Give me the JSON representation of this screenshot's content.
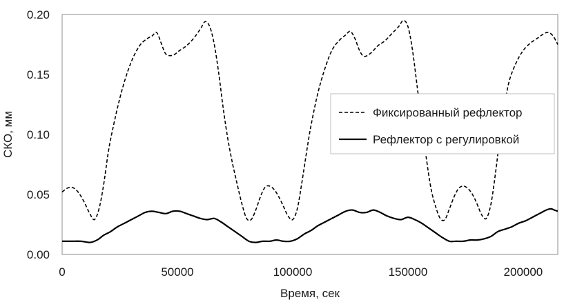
{
  "chart_data": {
    "type": "line",
    "title": "",
    "xlabel": "Время, сек",
    "ylabel": "СКО, мм",
    "xlim": [
      0,
      215000
    ],
    "ylim": [
      0,
      0.2
    ],
    "x_ticks": [
      0,
      50000,
      100000,
      150000,
      200000
    ],
    "x_tick_labels": [
      "0",
      "50000",
      "100000",
      "150000",
      "200000"
    ],
    "y_ticks": [
      0,
      0.05,
      0.1,
      0.15,
      0.2
    ],
    "y_tick_labels": [
      "0.00",
      "0.05",
      "0.10",
      "0.15",
      "0.20"
    ],
    "grid": false,
    "legend_position": "right",
    "series": [
      {
        "name": "Фиксированный рефлектор",
        "style": "dashed",
        "color": "#000000",
        "x": [
          0,
          2000,
          4000,
          6000,
          8000,
          10000,
          12000,
          14000,
          16000,
          18000,
          20000,
          22000,
          25000,
          28000,
          31000,
          34000,
          37000,
          39000,
          41000,
          43000,
          45000,
          48000,
          51000,
          54000,
          57000,
          60000,
          62000,
          64000,
          66000,
          68000,
          70000,
          72000,
          74000,
          76000,
          78000,
          80000,
          82000,
          84000,
          86000,
          88000,
          90000,
          92000,
          94000,
          96000,
          98000,
          100000,
          102000,
          104000,
          106000,
          108000,
          111000,
          114000,
          117000,
          120000,
          123000,
          125000,
          127000,
          129000,
          131000,
          134000,
          137000,
          140000,
          143000,
          146000,
          148000,
          150000,
          152000,
          154000,
          156000,
          158000,
          160000,
          162000,
          164000,
          166000,
          168000,
          170000,
          172000,
          174000,
          176000,
          178000,
          180000,
          182000,
          184000,
          186000,
          188000,
          190000,
          192000,
          194000,
          197000,
          200000,
          203000,
          206000,
          209000,
          211000,
          213000,
          215000
        ],
        "values": [
          0.052,
          0.055,
          0.056,
          0.054,
          0.049,
          0.042,
          0.034,
          0.029,
          0.038,
          0.058,
          0.085,
          0.105,
          0.13,
          0.15,
          0.165,
          0.175,
          0.18,
          0.182,
          0.185,
          0.176,
          0.167,
          0.166,
          0.17,
          0.174,
          0.18,
          0.188,
          0.194,
          0.19,
          0.175,
          0.15,
          0.12,
          0.095,
          0.075,
          0.058,
          0.042,
          0.03,
          0.029,
          0.037,
          0.048,
          0.056,
          0.057,
          0.054,
          0.048,
          0.04,
          0.032,
          0.029,
          0.038,
          0.06,
          0.085,
          0.108,
          0.135,
          0.155,
          0.17,
          0.178,
          0.183,
          0.186,
          0.18,
          0.17,
          0.165,
          0.168,
          0.174,
          0.178,
          0.184,
          0.19,
          0.195,
          0.19,
          0.17,
          0.14,
          0.11,
          0.08,
          0.055,
          0.04,
          0.03,
          0.029,
          0.038,
          0.048,
          0.055,
          0.057,
          0.055,
          0.05,
          0.042,
          0.033,
          0.03,
          0.042,
          0.068,
          0.1,
          0.125,
          0.145,
          0.16,
          0.17,
          0.176,
          0.18,
          0.184,
          0.185,
          0.182,
          0.175
        ]
      },
      {
        "name": "Рефлектор с регулировкой",
        "style": "solid",
        "color": "#000000",
        "x": [
          0,
          4000,
          8000,
          12000,
          14000,
          16000,
          18000,
          21000,
          24000,
          27000,
          30000,
          33000,
          36000,
          39000,
          42000,
          45000,
          48000,
          51000,
          54000,
          57000,
          60000,
          63000,
          66000,
          69000,
          72000,
          75000,
          78000,
          81000,
          84000,
          87000,
          90000,
          93000,
          96000,
          99000,
          102000,
          105000,
          108000,
          111000,
          114000,
          117000,
          120000,
          123000,
          126000,
          129000,
          132000,
          135000,
          138000,
          141000,
          144000,
          147000,
          150000,
          153000,
          156000,
          159000,
          162000,
          165000,
          168000,
          171000,
          174000,
          177000,
          180000,
          183000,
          186000,
          189000,
          192000,
          195000,
          198000,
          201000,
          204000,
          207000,
          210000,
          212000,
          213500,
          215000
        ],
        "values": [
          0.011,
          0.011,
          0.011,
          0.01,
          0.011,
          0.013,
          0.016,
          0.019,
          0.023,
          0.026,
          0.029,
          0.032,
          0.035,
          0.036,
          0.035,
          0.034,
          0.036,
          0.036,
          0.034,
          0.032,
          0.03,
          0.029,
          0.03,
          0.027,
          0.023,
          0.019,
          0.015,
          0.011,
          0.01,
          0.011,
          0.011,
          0.012,
          0.011,
          0.011,
          0.013,
          0.017,
          0.02,
          0.024,
          0.027,
          0.03,
          0.033,
          0.036,
          0.037,
          0.035,
          0.035,
          0.037,
          0.035,
          0.032,
          0.03,
          0.029,
          0.031,
          0.029,
          0.026,
          0.022,
          0.018,
          0.014,
          0.011,
          0.011,
          0.011,
          0.012,
          0.012,
          0.013,
          0.015,
          0.019,
          0.021,
          0.023,
          0.026,
          0.028,
          0.031,
          0.034,
          0.037,
          0.038,
          0.037,
          0.036
        ]
      }
    ]
  }
}
